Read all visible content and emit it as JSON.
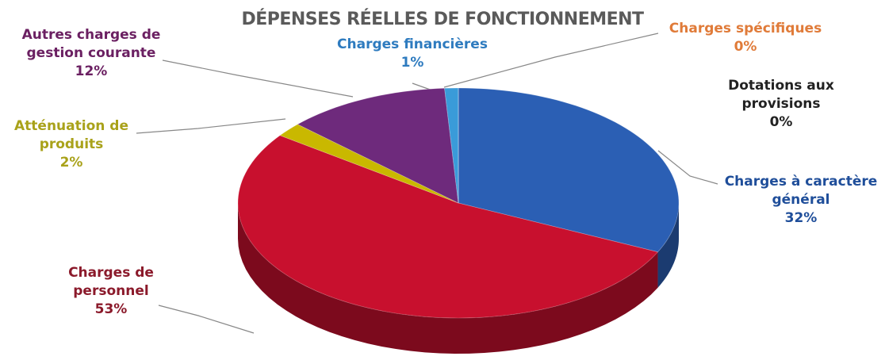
{
  "chart_data": {
    "type": "pie",
    "title": "DÉPENSES RÉELLES DE FONCTIONNEMENT",
    "categories": [
      "Charges à caractère général",
      "Charges de personnel",
      "Atténuation de produits",
      "Autres charges de gestion courante",
      "Charges financières",
      "Charges spécifiques",
      "Dotations aux provisions"
    ],
    "values": [
      32,
      53,
      2,
      12,
      1,
      0,
      0
    ],
    "value_labels": [
      "32%",
      "53%",
      "2%",
      "12%",
      "1%",
      "0%",
      "0%"
    ],
    "colors": [
      "#2b5fb4",
      "#c8102e",
      "#c9b800",
      "#6e2a7c",
      "#3a9bd9",
      "#e07b39",
      "#222222"
    ]
  }
}
